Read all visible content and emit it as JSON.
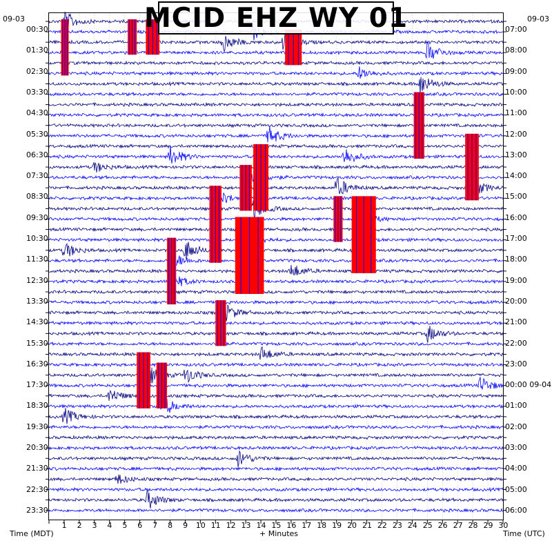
{
  "chart_data": {
    "type": "line",
    "title": "MCID EHZ WY 01",
    "xlabel": "+ Minutes",
    "left_axis_label": "Time (MDT)",
    "right_axis_label": "Time (UTC)",
    "left_date": "09-03",
    "right_date": "09-03",
    "right_date_change": "09-04",
    "x_ticks": [
      "1",
      "2",
      "3",
      "4",
      "5",
      "6",
      "7",
      "8",
      "9",
      "10",
      "11",
      "12",
      "13",
      "14",
      "15",
      "16",
      "17",
      "18",
      "19",
      "20",
      "21",
      "22",
      "23",
      "24",
      "25",
      "26",
      "27",
      "28",
      "29",
      "30"
    ],
    "xlim": [
      0,
      30
    ],
    "left_ticks": [
      "00:30",
      "01:30",
      "02:30",
      "03:30",
      "04:30",
      "05:30",
      "06:30",
      "07:30",
      "08:30",
      "09:30",
      "10:30",
      "11:30",
      "12:30",
      "13:30",
      "14:30",
      "15:30",
      "16:30",
      "17:30",
      "18:30",
      "19:30",
      "20:30",
      "21:30",
      "22:30",
      "23:30"
    ],
    "right_ticks": [
      "07:00",
      "08:00",
      "09:00",
      "10:00",
      "11:00",
      "12:00",
      "13:00",
      "14:00",
      "15:00",
      "16:00",
      "17:00",
      "18:00",
      "19:00",
      "20:00",
      "21:00",
      "22:00",
      "23:00",
      "00:00",
      "01:00",
      "02:00",
      "03:00",
      "04:00",
      "05:00",
      "06:00"
    ],
    "traces_per_hour": 2,
    "trace_colors": [
      "#000080",
      "#0000ff"
    ],
    "clip_color": "#ff0000",
    "grid": true,
    "events": [
      {
        "row": 0,
        "minute": 1.0,
        "amp": 1.0
      },
      {
        "row": 1,
        "minute": 13.5,
        "amp": 0.7
      },
      {
        "row": 2,
        "minute": 11.5,
        "amp": 0.9
      },
      {
        "row": 2,
        "minute": 15.5,
        "amp": 1.0
      },
      {
        "row": 3,
        "minute": 25.0,
        "amp": 1.0
      },
      {
        "row": 5,
        "minute": 20.5,
        "amp": 0.6
      },
      {
        "row": 6,
        "minute": 24.5,
        "amp": 1.0
      },
      {
        "row": 11,
        "minute": 14.5,
        "amp": 0.9
      },
      {
        "row": 13,
        "minute": 8.0,
        "amp": 1.0
      },
      {
        "row": 13,
        "minute": 19.5,
        "amp": 0.9
      },
      {
        "row": 14,
        "minute": 3.0,
        "amp": 0.5
      },
      {
        "row": 15,
        "minute": 13.5,
        "amp": 1.0
      },
      {
        "row": 16,
        "minute": 19.0,
        "amp": 1.0
      },
      {
        "row": 16,
        "minute": 28.0,
        "amp": 0.9
      },
      {
        "row": 17,
        "minute": 11.0,
        "amp": 1.0
      },
      {
        "row": 18,
        "minute": 13.5,
        "amp": 1.0
      },
      {
        "row": 19,
        "minute": 20.5,
        "amp": 1.0
      },
      {
        "row": 21,
        "minute": 13.0,
        "amp": 1.0
      },
      {
        "row": 22,
        "minute": 1.0,
        "amp": 0.8
      },
      {
        "row": 22,
        "minute": 9.0,
        "amp": 1.0
      },
      {
        "row": 23,
        "minute": 8.0,
        "amp": 1.0
      },
      {
        "row": 24,
        "minute": 16.0,
        "amp": 0.7
      },
      {
        "row": 25,
        "minute": 8.0,
        "amp": 1.0
      },
      {
        "row": 28,
        "minute": 11.5,
        "amp": 1.0
      },
      {
        "row": 30,
        "minute": 25.0,
        "amp": 0.8
      },
      {
        "row": 32,
        "minute": 14.0,
        "amp": 0.7
      },
      {
        "row": 34,
        "minute": 6.5,
        "amp": 1.0
      },
      {
        "row": 34,
        "minute": 9.0,
        "amp": 0.8
      },
      {
        "row": 35,
        "minute": 28.5,
        "amp": 0.8
      },
      {
        "row": 36,
        "minute": 4.0,
        "amp": 0.7
      },
      {
        "row": 37,
        "minute": 7.5,
        "amp": 1.0
      },
      {
        "row": 38,
        "minute": 1.0,
        "amp": 0.8
      },
      {
        "row": 42,
        "minute": 12.5,
        "amp": 0.8
      },
      {
        "row": 44,
        "minute": 4.5,
        "amp": 0.5
      },
      {
        "row": 46,
        "minute": 6.5,
        "amp": 0.9
      }
    ],
    "clipped_regions": [
      {
        "row_start": 0,
        "row_end": 5,
        "minute_start": 0.8,
        "minute_end": 1.3
      },
      {
        "row_start": 0,
        "row_end": 3,
        "minute_start": 5.2,
        "minute_end": 5.8
      },
      {
        "row_start": 0,
        "row_end": 3,
        "minute_start": 6.4,
        "minute_end": 7.3
      },
      {
        "row_start": 1,
        "row_end": 4,
        "minute_start": 15.6,
        "minute_end": 16.7
      },
      {
        "row_start": 7,
        "row_end": 13,
        "minute_start": 24.1,
        "minute_end": 24.8
      },
      {
        "row_start": 11,
        "row_end": 17,
        "minute_start": 27.5,
        "minute_end": 28.4
      },
      {
        "row_start": 12,
        "row_end": 18,
        "minute_start": 13.5,
        "minute_end": 14.5
      },
      {
        "row_start": 14,
        "row_end": 18,
        "minute_start": 12.6,
        "minute_end": 13.4
      },
      {
        "row_start": 16,
        "row_end": 23,
        "minute_start": 10.6,
        "minute_end": 11.4
      },
      {
        "row_start": 17,
        "row_end": 24,
        "minute_start": 20.0,
        "minute_end": 21.6
      },
      {
        "row_start": 19,
        "row_end": 26,
        "minute_start": 12.3,
        "minute_end": 14.2
      },
      {
        "row_start": 17,
        "row_end": 21,
        "minute_start": 18.8,
        "minute_end": 19.4
      },
      {
        "row_start": 21,
        "row_end": 27,
        "minute_start": 7.8,
        "minute_end": 8.4
      },
      {
        "row_start": 27,
        "row_end": 31,
        "minute_start": 11.0,
        "minute_end": 11.7
      },
      {
        "row_start": 32,
        "row_end": 37,
        "minute_start": 5.8,
        "minute_end": 6.7
      },
      {
        "row_start": 33,
        "row_end": 37,
        "minute_start": 7.1,
        "minute_end": 7.8
      }
    ]
  }
}
